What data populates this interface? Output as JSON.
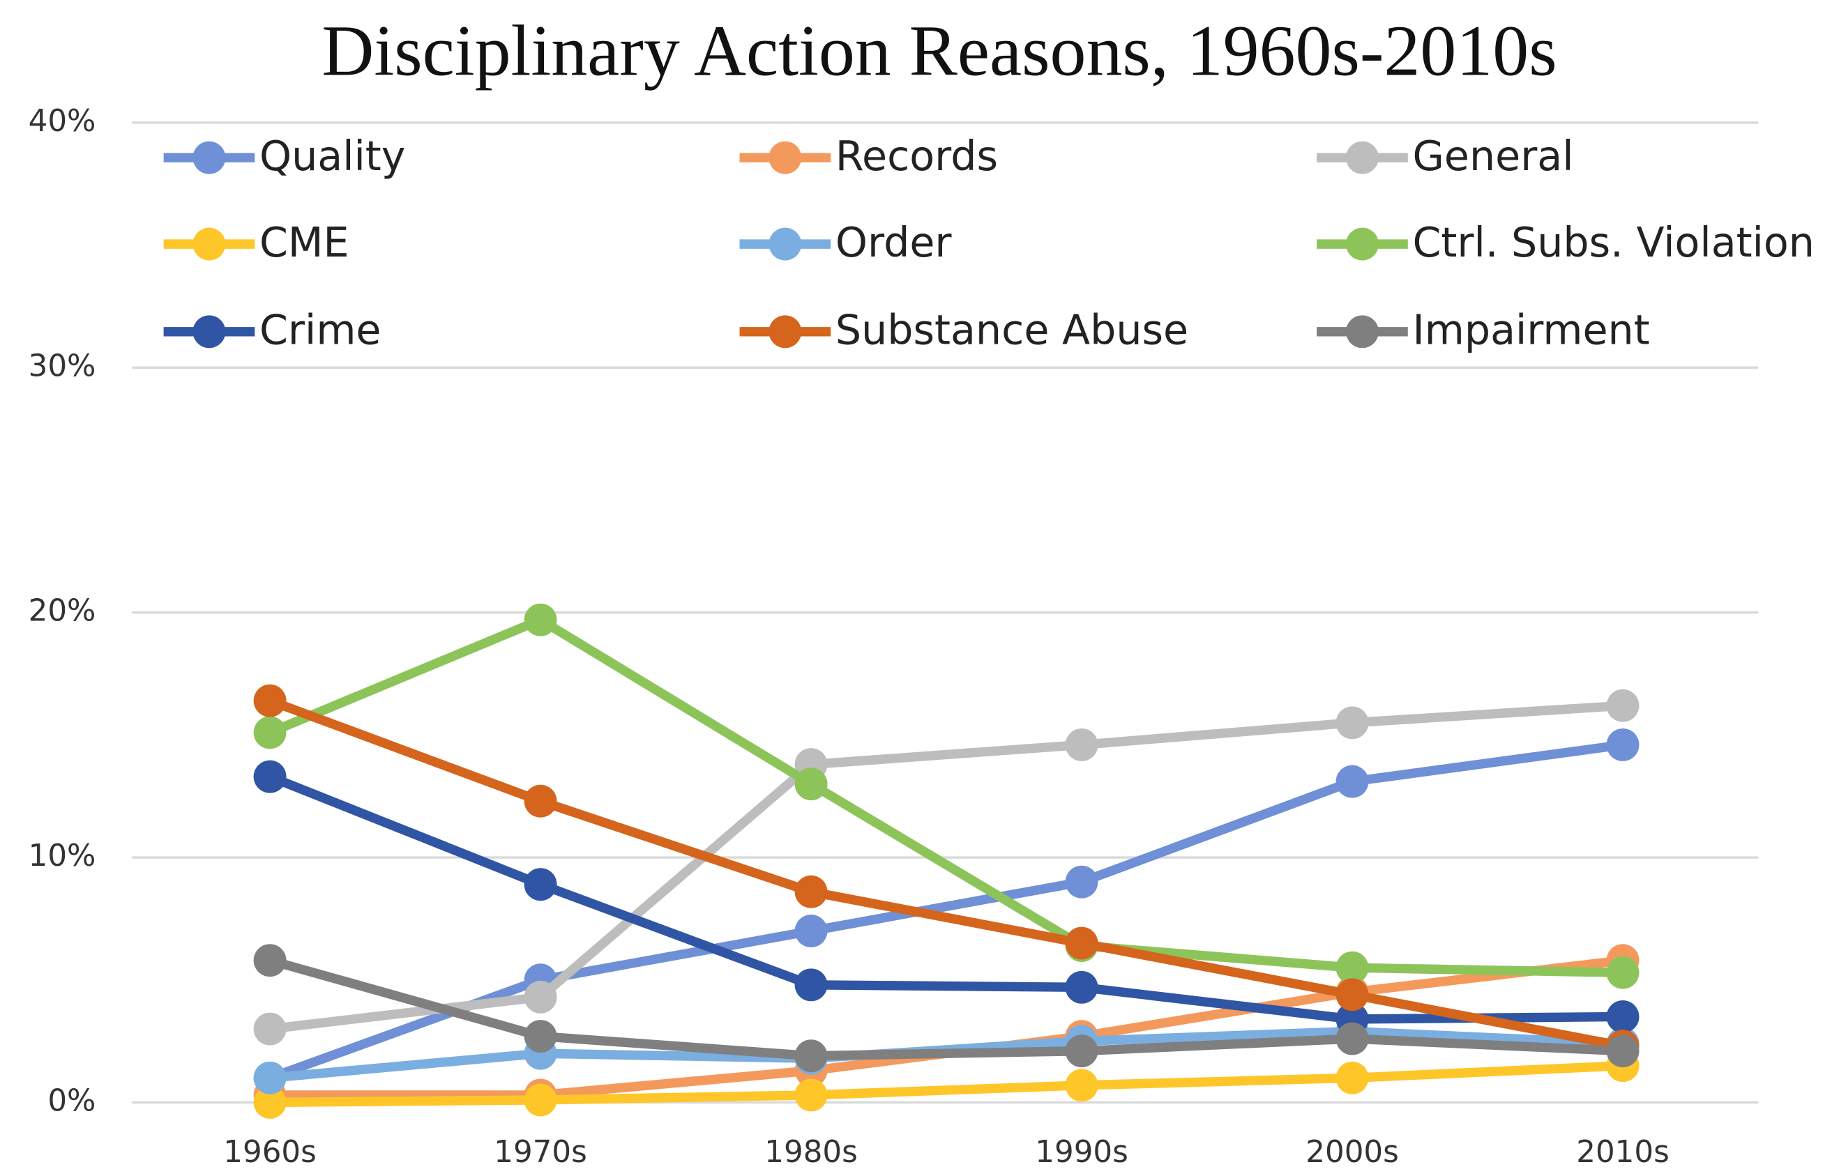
{
  "chart_data": {
    "type": "line",
    "title": "Disciplinary Action Reasons, 1960s-2010s",
    "categories": [
      "1960s",
      "1970s",
      "1980s",
      "1990s",
      "2000s",
      "2010s"
    ],
    "ylim": [
      0,
      40
    ],
    "yticks": [
      {
        "value": 0,
        "label": "0%"
      },
      {
        "value": 10,
        "label": "10%"
      },
      {
        "value": 20,
        "label": "20%"
      },
      {
        "value": 30,
        "label": "30%"
      },
      {
        "value": 40,
        "label": "40%"
      }
    ],
    "grid": true,
    "legend": "top",
    "series": [
      {
        "name": "Quality",
        "color": "#6f8fd6",
        "values": [
          1.0,
          5.0,
          7.0,
          9.0,
          13.1,
          14.6
        ]
      },
      {
        "name": "Records",
        "color": "#f4995c",
        "values": [
          0.3,
          0.3,
          1.3,
          2.7,
          4.5,
          5.8
        ]
      },
      {
        "name": "General",
        "color": "#bdbdbd",
        "values": [
          3.0,
          4.3,
          13.8,
          14.6,
          15.5,
          16.2
        ]
      },
      {
        "name": "CME",
        "color": "#ffc629",
        "values": [
          0,
          0.1,
          0.3,
          0.7,
          1.0,
          1.5
        ]
      },
      {
        "name": "Order",
        "color": "#7aaee0",
        "values": [
          1.0,
          2.0,
          1.8,
          2.5,
          2.9,
          2.4
        ]
      },
      {
        "name": "Ctrl. Subs. Violation",
        "color": "#8dc45a",
        "values": [
          15.1,
          19.7,
          13.0,
          6.4,
          5.5,
          5.3
        ]
      },
      {
        "name": "Crime",
        "color": "#2f55a4",
        "values": [
          13.3,
          8.9,
          4.8,
          4.7,
          3.4,
          3.5
        ]
      },
      {
        "name": "Substance Abuse",
        "color": "#d5641c",
        "values": [
          16.4,
          12.3,
          8.6,
          6.5,
          4.4,
          2.3
        ]
      },
      {
        "name": "Impairment",
        "color": "#7f7f7f",
        "values": [
          5.8,
          2.7,
          1.9,
          2.1,
          2.6,
          2.1
        ]
      }
    ]
  }
}
